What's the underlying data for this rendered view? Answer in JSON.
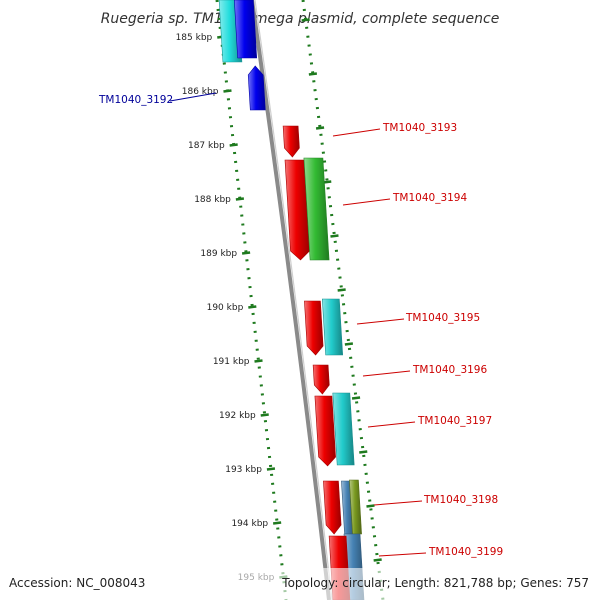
{
  "title": "Ruegeria sp. TM1040 mega plasmid, complete sequence",
  "footer": {
    "accession": "Accession: NC_008043",
    "topology": "Topology: circular; Length: 821,788 bp; Genes: 757"
  },
  "colors": {
    "backbone": "#8a8a8a",
    "tick": "#1e7a1e",
    "label_red": "#cc0000",
    "label_blue": "#000099"
  },
  "ticks": [
    "185 kbp",
    "186 kbp",
    "187 kbp",
    "188 kbp",
    "189 kbp",
    "190 kbp",
    "191 kbp",
    "192 kbp",
    "193 kbp",
    "194 kbp",
    "195 kbp"
  ],
  "gene_labels": [
    {
      "name": "TM1040_3192",
      "color": "#000099"
    },
    {
      "name": "TM1040_3193",
      "color": "#cc0000"
    },
    {
      "name": "TM1040_3194",
      "color": "#cc0000"
    },
    {
      "name": "TM1040_3195",
      "color": "#cc0000"
    },
    {
      "name": "TM1040_3196",
      "color": "#cc0000"
    },
    {
      "name": "TM1040_3197",
      "color": "#cc0000"
    },
    {
      "name": "TM1040_3198",
      "color": "#cc0000"
    },
    {
      "name": "TM1040_3199",
      "color": "#cc0000"
    }
  ],
  "features": [
    {
      "name": "cds-cyan-top",
      "color": "#22dddd"
    },
    {
      "name": "cds-blue-top",
      "color": "#0000ee"
    },
    {
      "name": "cds-tm1040-3192",
      "color": "#0000ee"
    },
    {
      "name": "cds-tm1040-3193",
      "color": "#ee0000"
    },
    {
      "name": "cds-tm1040-3194",
      "color": "#ee0000"
    },
    {
      "name": "cds-green-3194",
      "color": "#33bb33"
    },
    {
      "name": "cds-tm1040-3195",
      "color": "#ee0000"
    },
    {
      "name": "cds-cyan-3195",
      "color": "#22cccc"
    },
    {
      "name": "cds-tm1040-3196",
      "color": "#ee0000"
    },
    {
      "name": "cds-tm1040-3197",
      "color": "#ee0000"
    },
    {
      "name": "cds-cyan-3197",
      "color": "#22cccc"
    },
    {
      "name": "cds-tm1040-3198",
      "color": "#ee0000"
    },
    {
      "name": "cds-steelblue-3198",
      "color": "#4682b4"
    },
    {
      "name": "cds-olive-3198",
      "color": "#7a9a20"
    },
    {
      "name": "cds-steelblue-3199",
      "color": "#4682b4"
    },
    {
      "name": "cds-tm1040-3199",
      "color": "#ee0000"
    }
  ]
}
